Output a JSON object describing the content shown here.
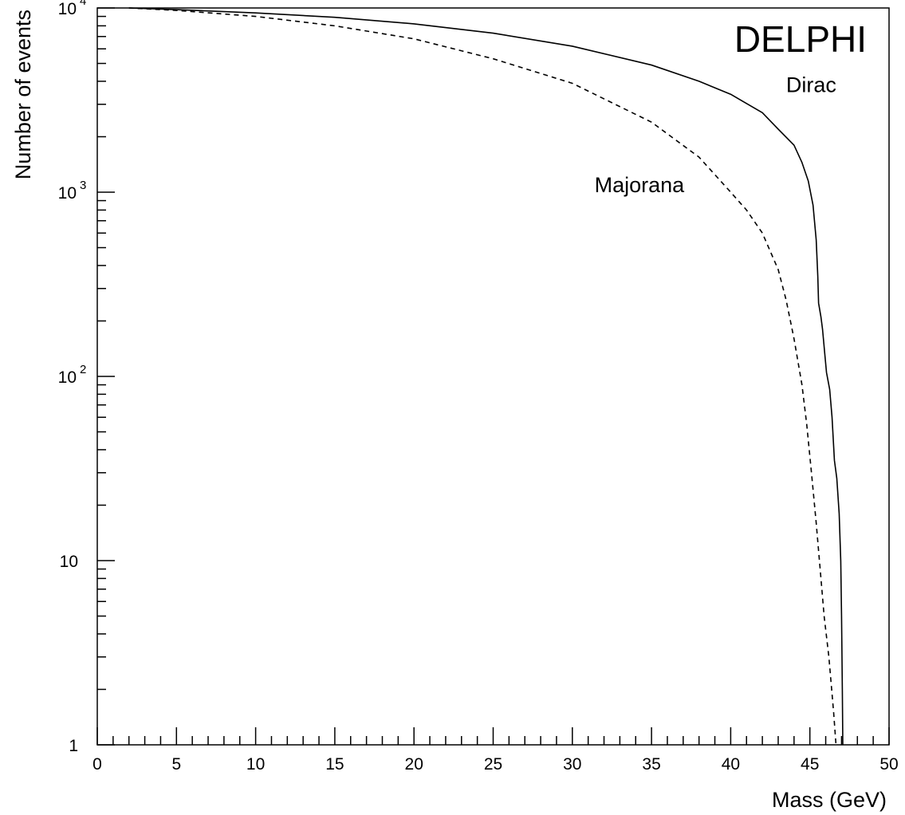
{
  "chart_data": {
    "type": "line",
    "title": "",
    "xlabel": "Mass (GeV)",
    "ylabel": "Number of events",
    "xlim": [
      0,
      50
    ],
    "ylim": [
      1,
      10000
    ],
    "yscale": "log",
    "grid": false,
    "x_ticks": [
      {
        "value": 0,
        "label": "0"
      },
      {
        "value": 5,
        "label": "5"
      },
      {
        "value": 10,
        "label": "10"
      },
      {
        "value": 15,
        "label": "15"
      },
      {
        "value": 20,
        "label": "20"
      },
      {
        "value": 25,
        "label": "25"
      },
      {
        "value": 30,
        "label": "30"
      },
      {
        "value": 35,
        "label": "35"
      },
      {
        "value": 40,
        "label": "40"
      },
      {
        "value": 45,
        "label": "45"
      },
      {
        "value": 50,
        "label": "50"
      }
    ],
    "y_ticks": [
      {
        "value": 1,
        "base": "1",
        "exponent": ""
      },
      {
        "value": 10,
        "base": "10",
        "exponent": ""
      },
      {
        "value": 100,
        "base": "10",
        "exponent": "2"
      },
      {
        "value": 1000,
        "base": "10",
        "exponent": "3"
      },
      {
        "value": 10000,
        "base": "10",
        "exponent": "4"
      }
    ],
    "watermark": "DELPHI",
    "series": [
      {
        "name": "Dirac",
        "style": "solid",
        "color": "#000000",
        "label_at": {
          "x": 43.5,
          "y": 3500
        },
        "points": [
          [
            2,
            10000
          ],
          [
            5,
            9800
          ],
          [
            10,
            9400
          ],
          [
            15,
            8900
          ],
          [
            20,
            8200
          ],
          [
            25,
            7300
          ],
          [
            30,
            6200
          ],
          [
            35,
            4900
          ],
          [
            38,
            4000
          ],
          [
            40,
            3400
          ],
          [
            42,
            2700
          ],
          [
            43,
            2200
          ],
          [
            44,
            1800
          ],
          [
            44.5,
            1450
          ],
          [
            44.9,
            1150
          ],
          [
            45.2,
            850
          ],
          [
            45.4,
            550
          ],
          [
            45.5,
            350
          ],
          [
            45.55,
            250
          ],
          [
            45.7,
            210
          ],
          [
            45.8,
            180
          ],
          [
            45.95,
            130
          ],
          [
            46.05,
            105
          ],
          [
            46.25,
            85
          ],
          [
            46.4,
            60
          ],
          [
            46.55,
            35
          ],
          [
            46.7,
            28
          ],
          [
            46.85,
            18
          ],
          [
            46.95,
            10
          ],
          [
            47.0,
            5
          ],
          [
            47.05,
            2
          ],
          [
            47.08,
            1
          ]
        ]
      },
      {
        "name": "Majorana",
        "style": "dashed",
        "color": "#000000",
        "label_at": {
          "x": 31.4,
          "y": 1000
        },
        "points": [
          [
            2,
            10000
          ],
          [
            5,
            9700
          ],
          [
            10,
            9000
          ],
          [
            15,
            8000
          ],
          [
            20,
            6800
          ],
          [
            25,
            5300
          ],
          [
            30,
            3900
          ],
          [
            35,
            2400
          ],
          [
            38,
            1550
          ],
          [
            40,
            1000
          ],
          [
            41,
            800
          ],
          [
            42,
            600
          ],
          [
            43,
            380
          ],
          [
            43.5,
            260
          ],
          [
            44,
            160
          ],
          [
            44.5,
            90
          ],
          [
            44.8,
            55
          ],
          [
            45.1,
            30
          ],
          [
            45.4,
            16
          ],
          [
            45.7,
            8
          ],
          [
            45.9,
            5
          ],
          [
            46.2,
            3
          ],
          [
            46.5,
            1.5
          ],
          [
            46.65,
            1
          ]
        ]
      }
    ]
  }
}
